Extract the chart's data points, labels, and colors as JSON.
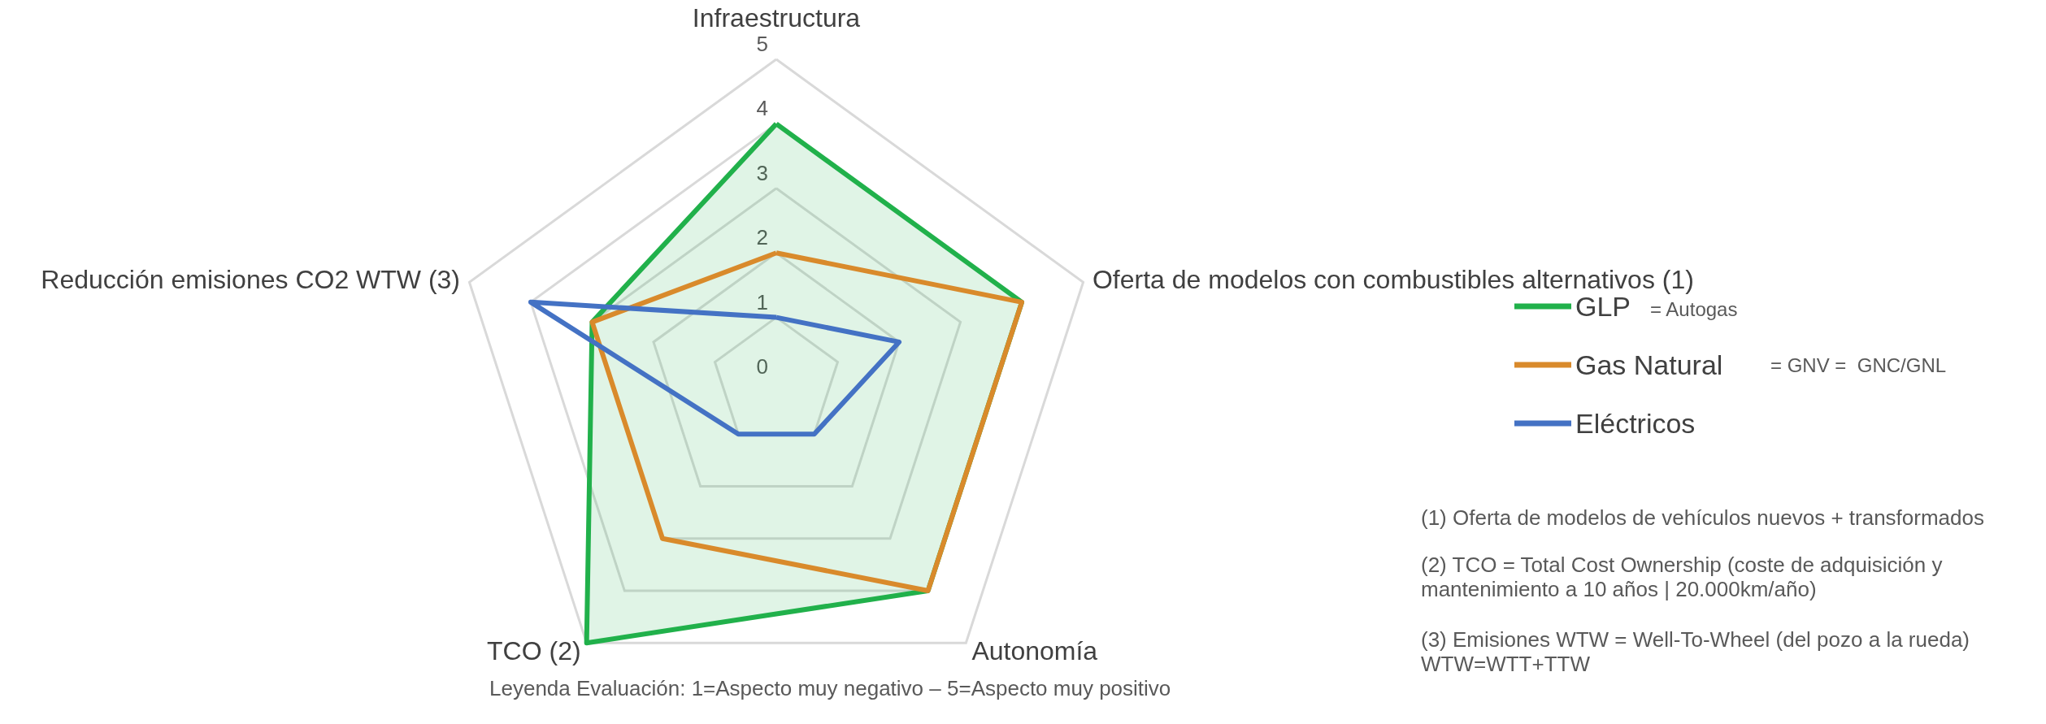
{
  "chart_data": {
    "type": "radar",
    "categories": [
      "Infraestructura",
      "Oferta de modelos con combustibles alternativos (1)",
      "Autonomía",
      "TCO (2)",
      "Reducción emisiones CO2 WTW (3)"
    ],
    "series": [
      {
        "name": "GLP",
        "color": "#21b14b",
        "type": "area",
        "values": [
          4,
          4,
          4,
          5,
          3
        ]
      },
      {
        "name": "Gas Natural",
        "color": "#d98a2b",
        "values": [
          2,
          4,
          4,
          3,
          3
        ]
      },
      {
        "name": "Eléctricos",
        "color": "#4472c4",
        "values": [
          1,
          2,
          1,
          1,
          4
        ]
      }
    ],
    "ylim": [
      0,
      5
    ],
    "yticks": [
      0,
      1,
      2,
      3,
      4,
      5
    ],
    "legend": "right",
    "annotations": [
      "= Autogas",
      "= GNV =  GNC/GNL",
      "(1) Oferta de modelos de vehículos nuevos + transformados",
      "(2) TCO = Total Cost Ownership (coste de adquisición y mantenimiento a 10 años | 20.000km/año)",
      "(3) Emisiones WTW = Well-To-Wheel (del pozo a la rueda) WTW=WTT+TTW",
      "Leyenda Evaluación: 1=Aspecto muy negativo – 5=Aspecto muy positivo"
    ]
  }
}
